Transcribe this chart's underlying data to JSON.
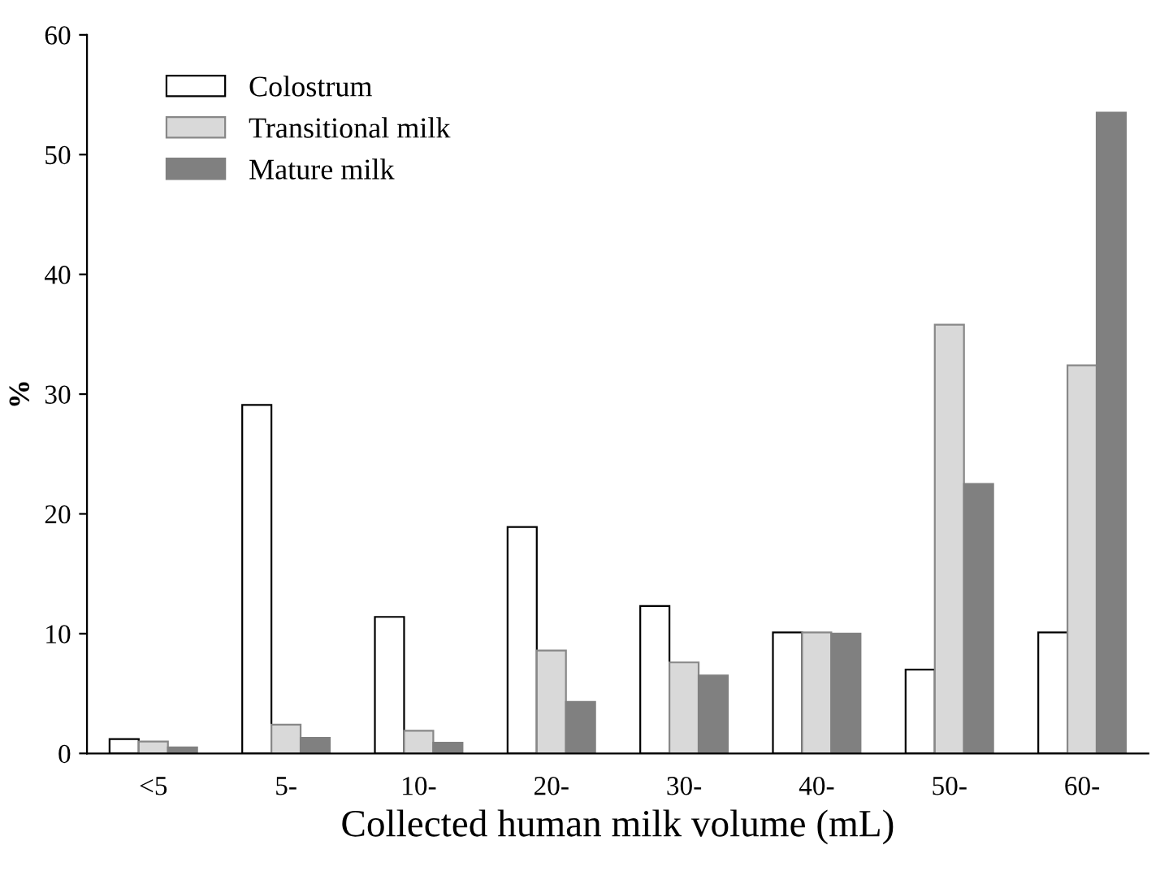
{
  "chart_data": {
    "type": "bar",
    "xlabel": "Collected human milk volume (mL)",
    "ylabel": "%",
    "categories": [
      "<5",
      "5-",
      "10-",
      "20-",
      "30-",
      "40-",
      "50-",
      "60-"
    ],
    "series": [
      {
        "name": "Colostrum",
        "color": "#ffffff",
        "values": [
          1.2,
          29.1,
          11.4,
          18.9,
          12.3,
          10.1,
          7.0,
          10.1
        ]
      },
      {
        "name": "Transitional milk",
        "color": "#d9d9d9",
        "values": [
          1.0,
          2.4,
          1.9,
          8.6,
          7.6,
          10.1,
          35.8,
          32.4
        ]
      },
      {
        "name": "Mature milk",
        "color": "#808080",
        "values": [
          0.5,
          1.3,
          0.9,
          4.3,
          6.5,
          10.0,
          22.5,
          53.5
        ]
      }
    ],
    "ylim": [
      0,
      60
    ],
    "yticks": [
      0,
      10,
      20,
      30,
      40,
      50,
      60
    ],
    "grid": false,
    "legend": "top left"
  }
}
